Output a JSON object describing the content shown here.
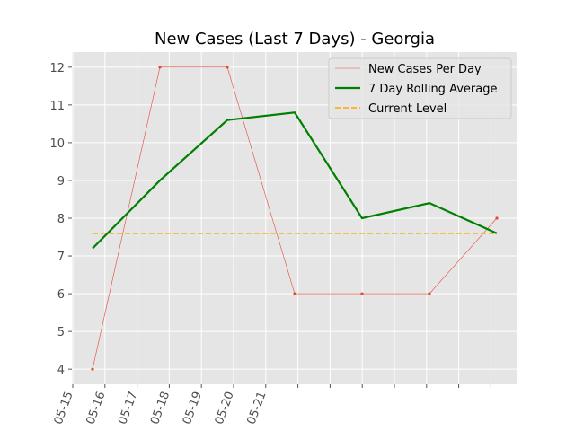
{
  "chart_data": {
    "type": "line",
    "title": "New Cases (Last 7 Days) - Georgia",
    "xlabel": "",
    "ylabel": "",
    "x_tick_labels": [
      "05-15",
      "05-16",
      "05-17",
      "05-18",
      "05-19",
      "05-20",
      "05-21"
    ],
    "x_dates": [
      "05-15",
      "05-16",
      "05-17",
      "05-18",
      "05-19",
      "05-20",
      "05-21"
    ],
    "ylim": [
      3.6,
      12.4
    ],
    "y_ticks": [
      4,
      5,
      6,
      7,
      8,
      9,
      10,
      11,
      12
    ],
    "grid": true,
    "legend_position": "top-right",
    "series": [
      {
        "name": "New Cases Per Day",
        "color": "#e24a33",
        "values": [
          4,
          12,
          12,
          6,
          6,
          6,
          8
        ]
      },
      {
        "name": "7 Day Rolling Average",
        "color": "#008000",
        "values": [
          7.2,
          9.0,
          10.6,
          10.8,
          8.0,
          8.4,
          7.6
        ]
      },
      {
        "name": "Current Level",
        "color": "#ffa500",
        "style": "dashed",
        "values": [
          7.6,
          7.6,
          7.6,
          7.6,
          7.6,
          7.6,
          7.6
        ]
      }
    ],
    "colors": {
      "plot_background": "#e5e5e5",
      "grid": "#ffffff"
    }
  }
}
